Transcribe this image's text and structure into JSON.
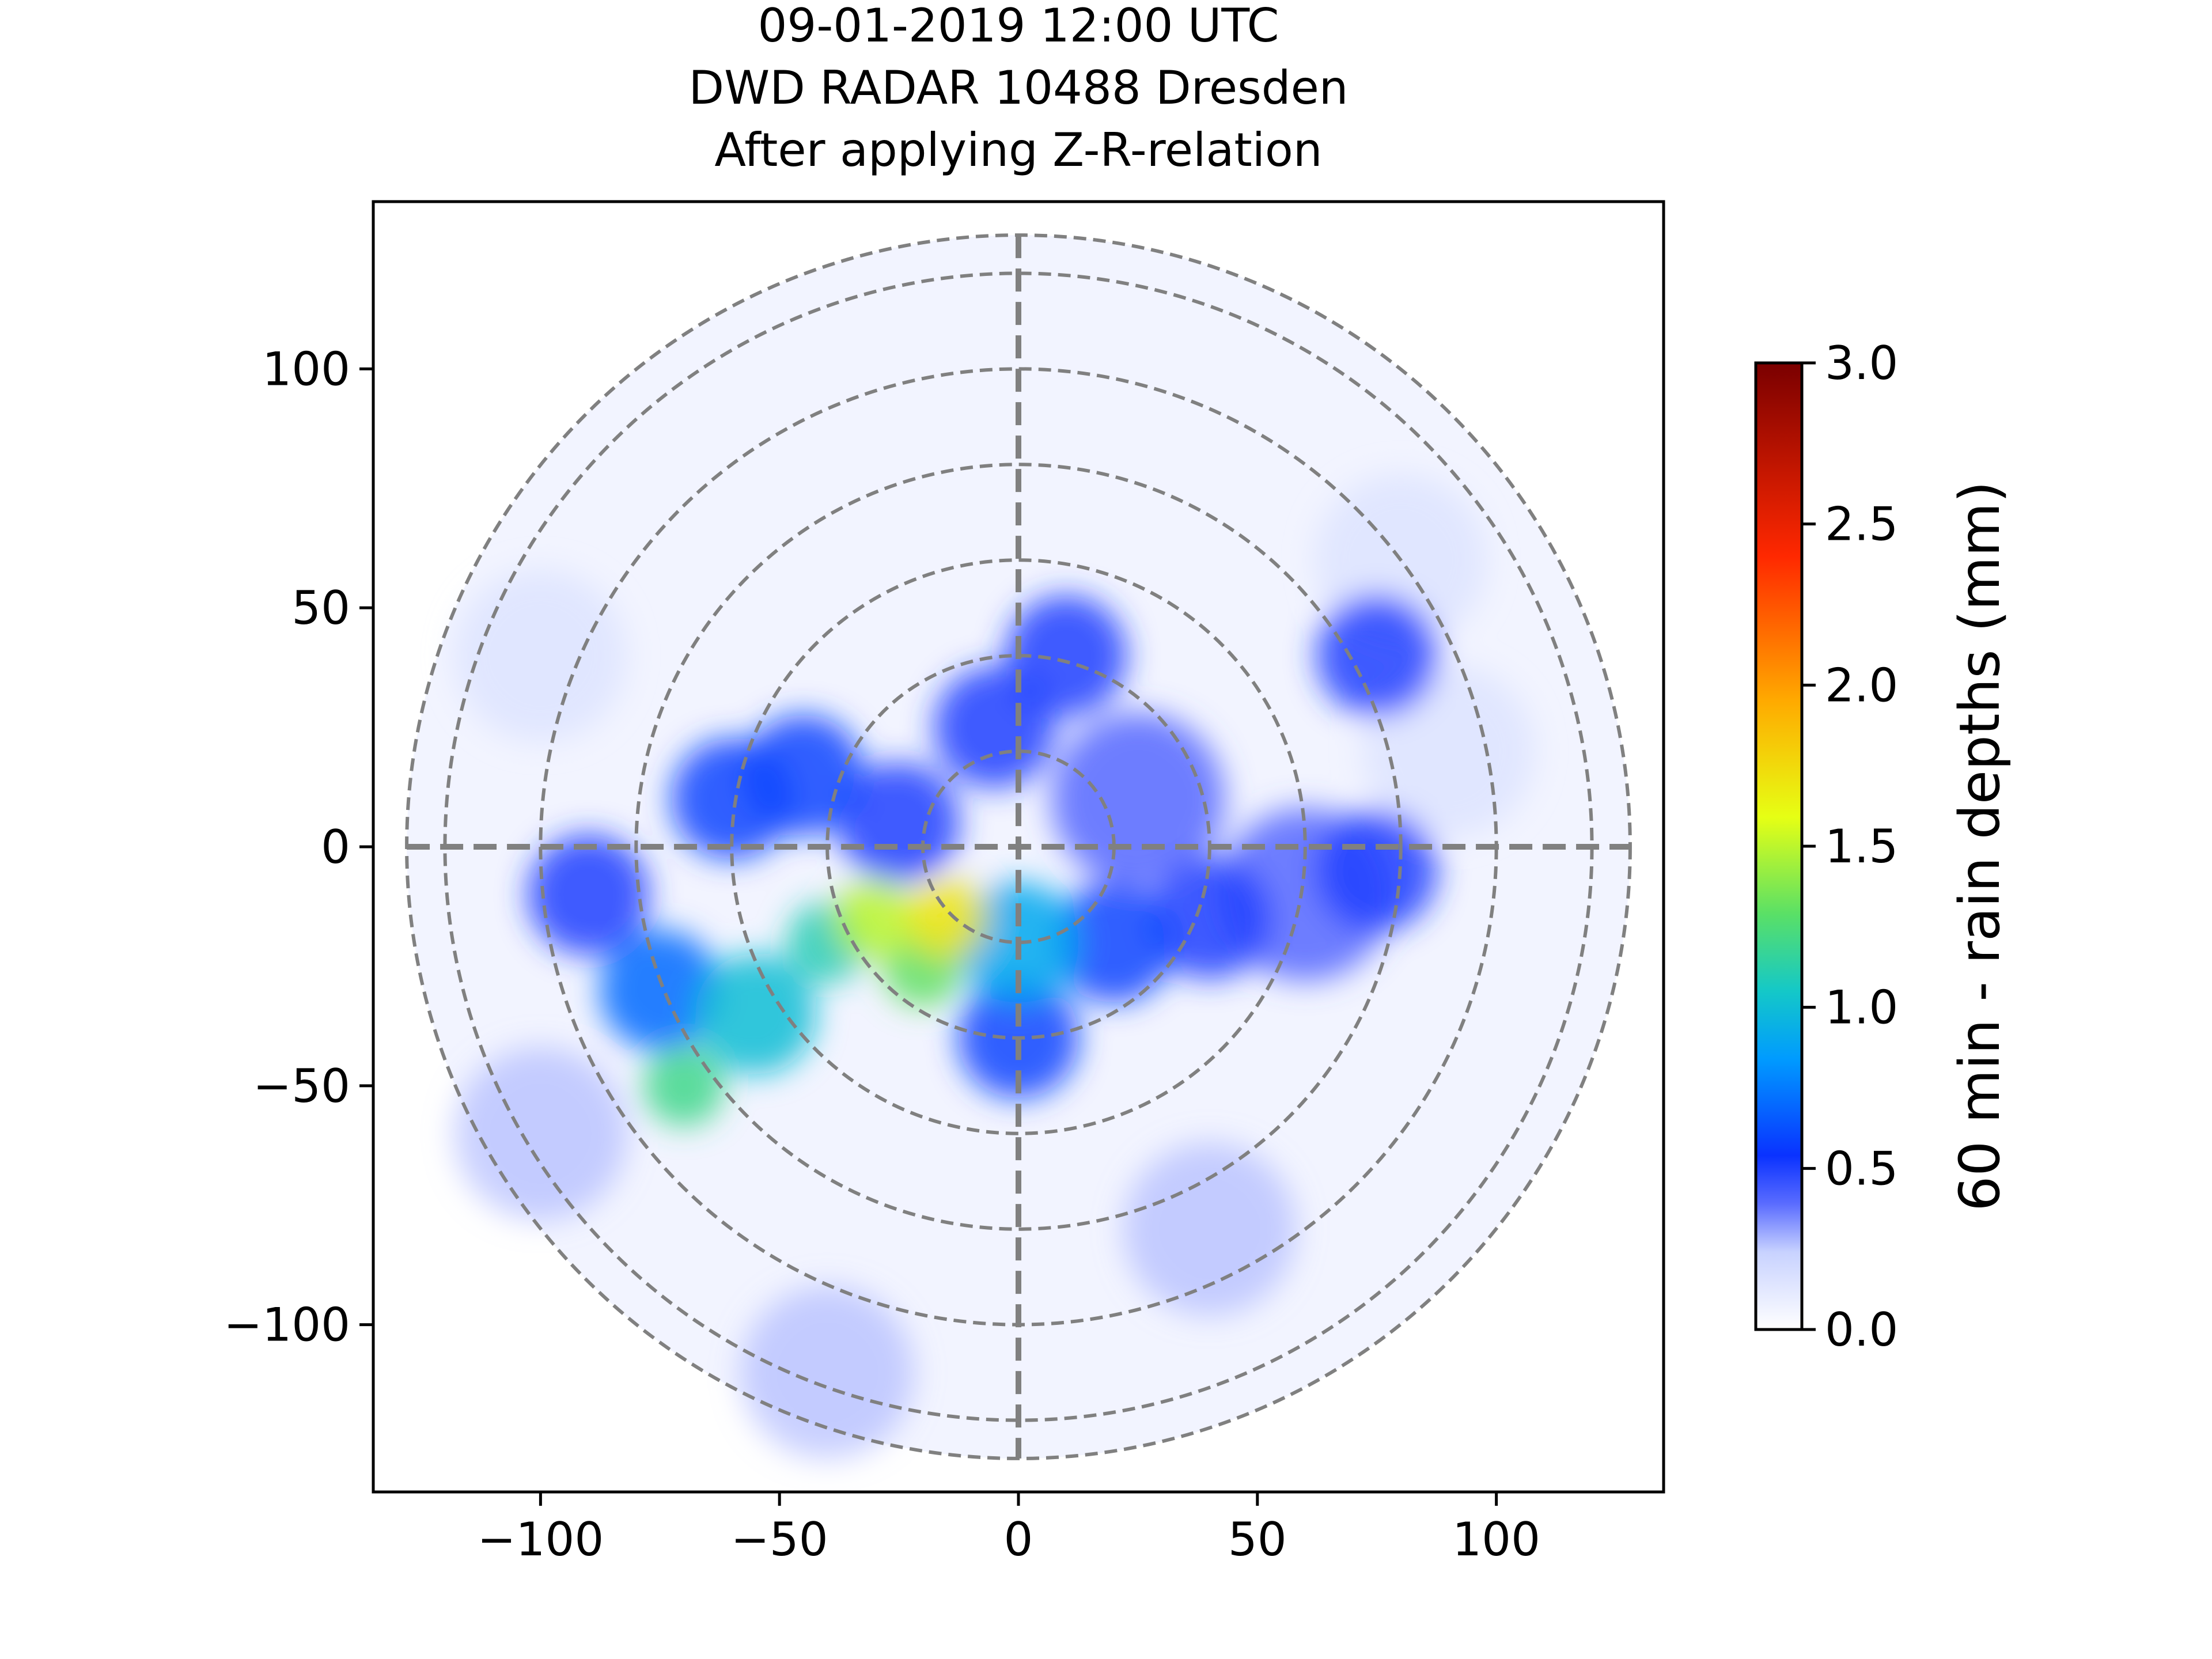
{
  "chart_data": {
    "type": "heatmap",
    "title_lines": [
      "09-01-2019 12:00 UTC",
      "DWD RADAR 10488 Dresden",
      "After applying Z-R-relation"
    ],
    "xlabel": "",
    "ylabel": "",
    "xlim": [
      -135,
      135
    ],
    "ylim": [
      -135,
      135
    ],
    "xticks": [
      -100,
      -50,
      0,
      50,
      100
    ],
    "yticks": [
      -100,
      -50,
      0,
      50,
      100
    ],
    "xtick_labels": [
      "−100",
      "−50",
      "0",
      "50",
      "100"
    ],
    "ytick_labels": [
      "−100",
      "−50",
      "0",
      "50",
      "100"
    ],
    "range_rings_km": [
      20,
      40,
      60,
      80,
      100,
      120,
      128
    ],
    "crosshair": true,
    "colorbar": {
      "label": "60 min - rain depths (mm)",
      "min": 0.0,
      "max": 3.0,
      "ticks": [
        0.0,
        0.5,
        1.0,
        1.5,
        2.0,
        2.5,
        3.0
      ],
      "tick_labels": [
        "0.0",
        "0.5",
        "1.0",
        "1.5",
        "2.0",
        "2.5",
        "3.0"
      ],
      "colormap": "jet-like (white at 0)"
    },
    "precip_regions": [
      {
        "x": -30,
        "y": -15,
        "value": 1.5
      },
      {
        "x": -15,
        "y": -15,
        "value": 1.7
      },
      {
        "x": -20,
        "y": -25,
        "value": 1.3
      },
      {
        "x": -40,
        "y": -20,
        "value": 1.1
      },
      {
        "x": -55,
        "y": -35,
        "value": 1.0
      },
      {
        "x": -70,
        "y": -50,
        "value": 1.2
      },
      {
        "x": -75,
        "y": -30,
        "value": 0.7
      },
      {
        "x": -90,
        "y": -10,
        "value": 0.5
      },
      {
        "x": -60,
        "y": 10,
        "value": 0.6
      },
      {
        "x": -45,
        "y": 15,
        "value": 0.6
      },
      {
        "x": -25,
        "y": 5,
        "value": 0.5
      },
      {
        "x": 0,
        "y": -20,
        "value": 0.9
      },
      {
        "x": 0,
        "y": -40,
        "value": 0.6
      },
      {
        "x": 20,
        "y": -20,
        "value": 0.6
      },
      {
        "x": 40,
        "y": -15,
        "value": 0.5
      },
      {
        "x": 60,
        "y": -10,
        "value": 0.4
      },
      {
        "x": 75,
        "y": -5,
        "value": 0.5
      },
      {
        "x": 10,
        "y": 40,
        "value": 0.5
      },
      {
        "x": -5,
        "y": 25,
        "value": 0.5
      },
      {
        "x": 25,
        "y": 10,
        "value": 0.4
      },
      {
        "x": 75,
        "y": 40,
        "value": 0.5
      },
      {
        "x": -100,
        "y": 40,
        "value": 0.2
      },
      {
        "x": -100,
        "y": -60,
        "value": 0.3
      },
      {
        "x": -40,
        "y": -110,
        "value": 0.3
      },
      {
        "x": 40,
        "y": -80,
        "value": 0.3
      },
      {
        "x": 80,
        "y": 60,
        "value": 0.2
      },
      {
        "x": 90,
        "y": 20,
        "value": 0.2
      }
    ]
  }
}
